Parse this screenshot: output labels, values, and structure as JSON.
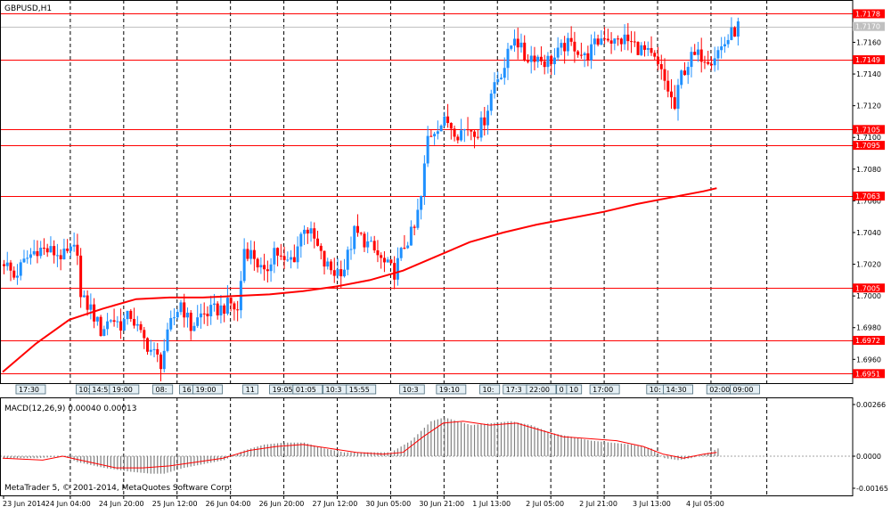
{
  "symbol_label": "GBPUSD,H1",
  "macd_label": "MACD(12,26,9) 0.00040 0.00013",
  "copyright": "MetaTrader 5, © 2001-2014, MetaQuotes Software Corp.",
  "colors": {
    "background": "#ffffff",
    "bull_candle": "#1e90ff",
    "bear_candle": "#ff0000",
    "hline": "#ff0000",
    "moving_average": "#ff0000",
    "macd_histogram": "#808080",
    "macd_signal": "#ff0000",
    "grid": "#000000",
    "axis_text": "#000000"
  },
  "price_axis": {
    "ticks": [
      "1.7160",
      "1.7140",
      "1.7120",
      "1.7100",
      "1.7080",
      "1.7060",
      "1.7040",
      "1.7020",
      "1.7000",
      "1.6980",
      "1.6960"
    ]
  },
  "price_labels": [
    {
      "text": "1.7178",
      "value": 1.7178,
      "kind": "hline"
    },
    {
      "text": "1.7170",
      "value": 1.717,
      "kind": "bid"
    },
    {
      "text": "1.7149",
      "value": 1.7149,
      "kind": "hline"
    },
    {
      "text": "1.7105",
      "value": 1.7105,
      "kind": "hline"
    },
    {
      "text": "1.7095",
      "value": 1.7095,
      "kind": "hline"
    },
    {
      "text": "1.7063",
      "value": 1.7063,
      "kind": "hline"
    },
    {
      "text": "1.7005",
      "value": 1.7005,
      "kind": "hline"
    },
    {
      "text": "1.6972",
      "value": 1.6972,
      "kind": "hline"
    },
    {
      "text": "1.6951",
      "value": 1.6951,
      "kind": "hline"
    }
  ],
  "time_axis": {
    "labels": [
      {
        "text": "23 Jun 2014",
        "bar": 0
      },
      {
        "text": "24 Jun 04:00",
        "bar": 20
      },
      {
        "text": "24 Jun 20:00",
        "bar": 36
      },
      {
        "text": "25 Jun 12:00",
        "bar": 52
      },
      {
        "text": "26 Jun 04:00",
        "bar": 68
      },
      {
        "text": "26 Jun 20:00",
        "bar": 84
      },
      {
        "text": "27 Jun 12:00",
        "bar": 100
      },
      {
        "text": "30 Jun 05:00",
        "bar": 116
      },
      {
        "text": "30 Jun 21:00",
        "bar": 132
      },
      {
        "text": "1 Jul 13:00",
        "bar": 148
      },
      {
        "text": "2 Jul 05:00",
        "bar": 164
      },
      {
        "text": "2 Jul 21:00",
        "bar": 180
      },
      {
        "text": "3 Jul 13:00",
        "bar": 196
      },
      {
        "text": "4 Jul 05:00",
        "bar": 212
      }
    ]
  },
  "event_markers": [
    {
      "text": "17:30",
      "bar": 4
    },
    {
      "text": "10:",
      "bar": 22
    },
    {
      "text": "14:5",
      "bar": 26
    },
    {
      "text": "19:00",
      "bar": 32
    },
    {
      "text": "08:",
      "bar": 45
    },
    {
      "text": "16",
      "bar": 53
    },
    {
      "text": "19:00",
      "bar": 57
    },
    {
      "text": "11",
      "bar": 72
    },
    {
      "text": "19:05",
      "bar": 80
    },
    {
      "text": "01:05",
      "bar": 87
    },
    {
      "text": "10:3",
      "bar": 96
    },
    {
      "text": "15:55",
      "bar": 103
    },
    {
      "text": "10:3",
      "bar": 119
    },
    {
      "text": "19:10",
      "bar": 130
    },
    {
      "text": "10:",
      "bar": 143
    },
    {
      "text": "17:3",
      "bar": 150
    },
    {
      "text": "22:00",
      "bar": 157
    },
    {
      "text": "0",
      "bar": 166
    },
    {
      "text": "10",
      "bar": 169
    },
    {
      "text": "17:00",
      "bar": 176
    },
    {
      "text": "10:",
      "bar": 193
    },
    {
      "text": "14:30",
      "bar": 198
    },
    {
      "text": "02:00",
      "bar": 211
    },
    {
      "text": "09:00",
      "bar": 218
    }
  ],
  "chart_data": {
    "type": "candlestick",
    "title": "GBPUSD,H1",
    "bar_interval": "1 hour",
    "first_bar": "23 Jun 2014",
    "ylim": [
      1.6945,
      1.7185
    ],
    "bid": 1.717,
    "horizontal_levels": [
      1.7178,
      1.7149,
      1.7105,
      1.7095,
      1.7063,
      1.7005,
      1.6972,
      1.6951
    ],
    "close_path": [
      [
        0,
        1.7022
      ],
      [
        3,
        1.7012
      ],
      [
        7,
        1.7024
      ],
      [
        10,
        1.703
      ],
      [
        14,
        1.7028
      ],
      [
        18,
        1.7025
      ],
      [
        22,
        1.703
      ],
      [
        23,
        1.6998
      ],
      [
        26,
        1.6992
      ],
      [
        29,
        1.6978
      ],
      [
        32,
        1.6986
      ],
      [
        35,
        1.6982
      ],
      [
        38,
        1.6988
      ],
      [
        41,
        1.6975
      ],
      [
        44,
        1.6966
      ],
      [
        47,
        1.6958
      ],
      [
        50,
        1.6982
      ],
      [
        53,
        1.6996
      ],
      [
        56,
        1.698
      ],
      [
        59,
        1.6988
      ],
      [
        62,
        1.699
      ],
      [
        65,
        1.6992
      ],
      [
        68,
        1.6995
      ],
      [
        70,
        1.699
      ],
      [
        72,
        1.703
      ],
      [
        75,
        1.7025
      ],
      [
        78,
        1.7012
      ],
      [
        81,
        1.703
      ],
      [
        84,
        1.702
      ],
      [
        87,
        1.7025
      ],
      [
        90,
        1.7045
      ],
      [
        93,
        1.7035
      ],
      [
        96,
        1.702
      ],
      [
        99,
        1.7015
      ],
      [
        102,
        1.7018
      ],
      [
        105,
        1.704
      ],
      [
        108,
        1.7035
      ],
      [
        111,
        1.7028
      ],
      [
        114,
        1.702
      ],
      [
        117,
        1.7015
      ],
      [
        120,
        1.7032
      ],
      [
        123,
        1.7042
      ],
      [
        125,
        1.7062
      ],
      [
        127,
        1.71
      ],
      [
        130,
        1.7108
      ],
      [
        133,
        1.711
      ],
      [
        136,
        1.7103
      ],
      [
        139,
        1.7106
      ],
      [
        142,
        1.7104
      ],
      [
        144,
        1.7112
      ],
      [
        147,
        1.7135
      ],
      [
        150,
        1.7145
      ],
      [
        153,
        1.7165
      ],
      [
        156,
        1.715
      ],
      [
        159,
        1.7152
      ],
      [
        162,
        1.7148
      ],
      [
        165,
        1.715
      ],
      [
        168,
        1.7158
      ],
      [
        171,
        1.7158
      ],
      [
        174,
        1.715
      ],
      [
        177,
        1.7158
      ],
      [
        180,
        1.7165
      ],
      [
        183,
        1.716
      ],
      [
        186,
        1.7162
      ],
      [
        189,
        1.7158
      ],
      [
        192,
        1.7154
      ],
      [
        195,
        1.7148
      ],
      [
        197,
        1.714
      ],
      [
        199,
        1.713
      ],
      [
        201,
        1.7118
      ],
      [
        203,
        1.714
      ],
      [
        206,
        1.715
      ],
      [
        209,
        1.7152
      ],
      [
        212,
        1.715
      ],
      [
        215,
        1.7157
      ],
      [
        218,
        1.7165
      ],
      [
        220,
        1.717
      ]
    ],
    "moving_average": [
      [
        0,
        1.6952
      ],
      [
        10,
        1.697
      ],
      [
        20,
        1.6985
      ],
      [
        30,
        1.6992
      ],
      [
        40,
        1.6998
      ],
      [
        50,
        1.6999
      ],
      [
        60,
        1.6999
      ],
      [
        70,
        1.7
      ],
      [
        80,
        1.7001
      ],
      [
        90,
        1.7003
      ],
      [
        100,
        1.7006
      ],
      [
        110,
        1.701
      ],
      [
        120,
        1.7016
      ],
      [
        130,
        1.7025
      ],
      [
        140,
        1.7034
      ],
      [
        150,
        1.704
      ],
      [
        160,
        1.7045
      ],
      [
        170,
        1.7049
      ],
      [
        180,
        1.7053
      ],
      [
        190,
        1.7058
      ],
      [
        200,
        1.7062
      ],
      [
        210,
        1.7066
      ],
      [
        214,
        1.7068
      ]
    ],
    "macd": {
      "name": "MACD(12,26,9)",
      "main_value": 0.0004,
      "signal_value": 0.00013,
      "ylim": [
        -0.00165,
        0.00266
      ],
      "axis_ticks": [
        "0.00266",
        "0.0000",
        "-0.00165"
      ],
      "histogram_path": [
        [
          0,
          -0.0001
        ],
        [
          10,
          -0.0001
        ],
        [
          18,
          0.0
        ],
        [
          22,
          -0.0003
        ],
        [
          30,
          -0.0006
        ],
        [
          38,
          -0.0008
        ],
        [
          44,
          -0.0009
        ],
        [
          48,
          -0.0009
        ],
        [
          54,
          -0.0006
        ],
        [
          60,
          -0.0004
        ],
        [
          66,
          -0.0002
        ],
        [
          72,
          0.0003
        ],
        [
          78,
          0.0006
        ],
        [
          84,
          0.0007
        ],
        [
          90,
          0.0007
        ],
        [
          96,
          0.0004
        ],
        [
          102,
          0.0002
        ],
        [
          108,
          0.0002
        ],
        [
          116,
          0.0002
        ],
        [
          122,
          0.0008
        ],
        [
          128,
          0.0018
        ],
        [
          132,
          0.002
        ],
        [
          136,
          0.0018
        ],
        [
          140,
          0.0016
        ],
        [
          146,
          0.0017
        ],
        [
          152,
          0.0018
        ],
        [
          158,
          0.0016
        ],
        [
          164,
          0.0012
        ],
        [
          170,
          0.001
        ],
        [
          176,
          0.0008
        ],
        [
          182,
          0.0007
        ],
        [
          188,
          0.0006
        ],
        [
          194,
          0.0004
        ],
        [
          198,
          -0.0001
        ],
        [
          202,
          -0.0002
        ],
        [
          206,
          -0.0001
        ],
        [
          210,
          0.0001
        ],
        [
          214,
          0.0004
        ]
      ],
      "signal_path": [
        [
          0,
          -0.0001
        ],
        [
          12,
          -0.0002
        ],
        [
          18,
          0.0
        ],
        [
          26,
          -0.0003
        ],
        [
          34,
          -0.0006
        ],
        [
          42,
          -0.0006
        ],
        [
          50,
          -0.0005
        ],
        [
          58,
          -0.0003
        ],
        [
          66,
          -0.0001
        ],
        [
          74,
          0.0003
        ],
        [
          82,
          0.0005
        ],
        [
          90,
          0.0006
        ],
        [
          98,
          0.0004
        ],
        [
          106,
          0.0002
        ],
        [
          114,
          0.0001
        ],
        [
          120,
          0.0002
        ],
        [
          126,
          0.001
        ],
        [
          132,
          0.0017
        ],
        [
          138,
          0.0018
        ],
        [
          146,
          0.0016
        ],
        [
          154,
          0.0017
        ],
        [
          160,
          0.0014
        ],
        [
          168,
          0.001
        ],
        [
          176,
          0.0009
        ],
        [
          184,
          0.0008
        ],
        [
          192,
          0.0005
        ],
        [
          198,
          0.0001
        ],
        [
          204,
          -0.0001
        ],
        [
          210,
          0.0001
        ],
        [
          214,
          0.0002
        ]
      ]
    }
  }
}
